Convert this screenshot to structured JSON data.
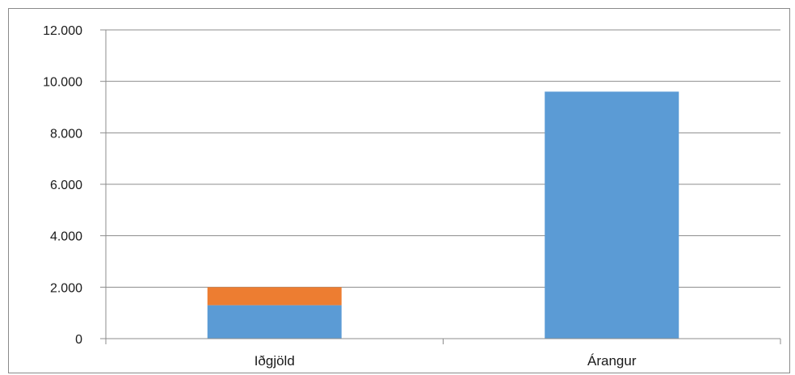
{
  "chart_data": {
    "type": "bar",
    "stacked": true,
    "categories": [
      "Iðgjöld",
      "Árangur"
    ],
    "series": [
      {
        "values": [
          1300,
          9600
        ],
        "color": "#5b9bd5"
      },
      {
        "values": [
          700,
          0
        ],
        "color": "#ed7d31"
      }
    ],
    "ylim": [
      0,
      12000
    ],
    "yticks": [
      0,
      2000,
      4000,
      6000,
      8000,
      10000,
      12000
    ],
    "ytick_labels": [
      "0",
      "2.000",
      "4.000",
      "6.000",
      "8.000",
      "10.000",
      "12.000"
    ],
    "grid": true,
    "legend": "none",
    "title": "",
    "xlabel": "",
    "ylabel": ""
  }
}
